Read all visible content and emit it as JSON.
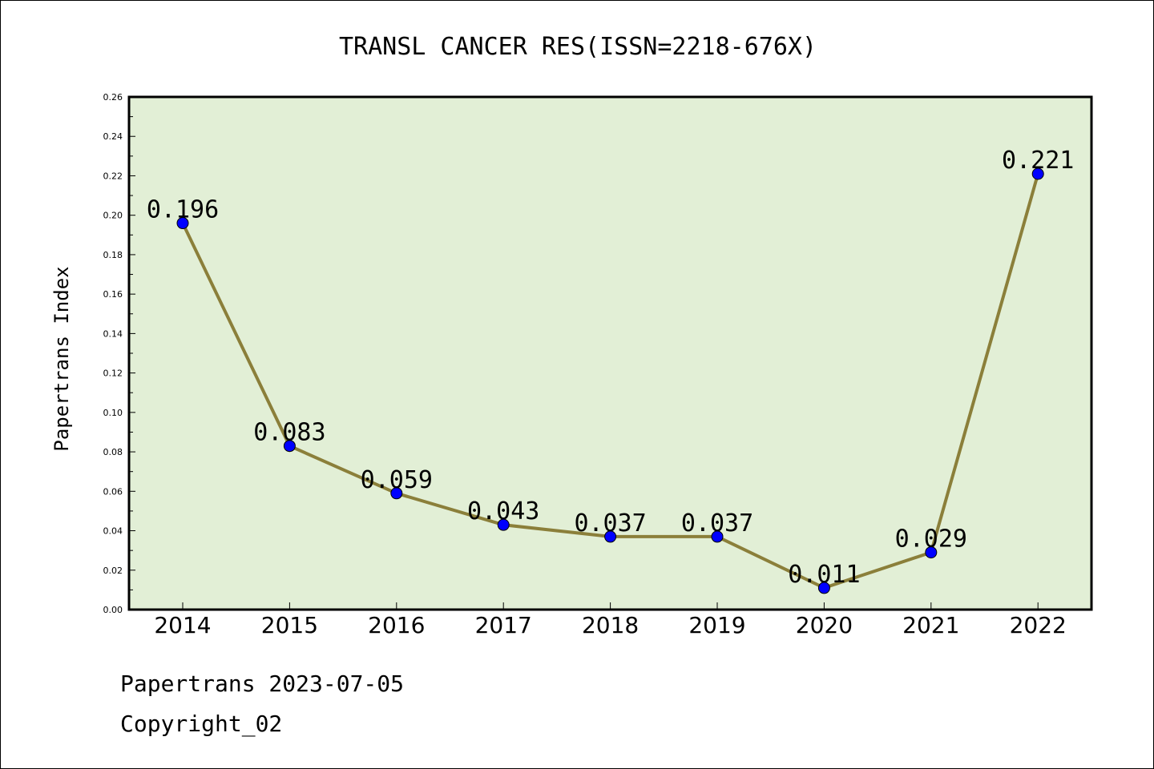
{
  "chart_data": {
    "type": "line",
    "title": "TRANSL CANCER RES(ISSN=2218-676X)",
    "ylabel": "Papertrans Index",
    "xlabel": "",
    "x": [
      "2014",
      "2015",
      "2016",
      "2017",
      "2018",
      "2019",
      "2020",
      "2021",
      "2022"
    ],
    "values": [
      0.196,
      0.083,
      0.059,
      0.043,
      0.037,
      0.037,
      0.011,
      0.029,
      0.221
    ],
    "data_labels": [
      "0.196",
      "0.083",
      "0.059",
      "0.043",
      "0.037",
      "0.037",
      "0.011",
      "0.029",
      "0.221"
    ],
    "ylim": [
      0,
      0.26
    ],
    "yticks": [
      "0.00",
      "0.02",
      "0.04",
      "0.06",
      "0.08",
      "0.10",
      "0.12",
      "0.14",
      "0.16",
      "0.18",
      "0.20",
      "0.22",
      "0.24",
      "0.26"
    ],
    "grid": false,
    "colors": {
      "plot_background": "#e2efd6",
      "line": "#8b7f3a",
      "marker": "#0000ff"
    }
  },
  "footer": {
    "line1": "Papertrans 2023-07-05",
    "line2": "Copyright_02"
  }
}
